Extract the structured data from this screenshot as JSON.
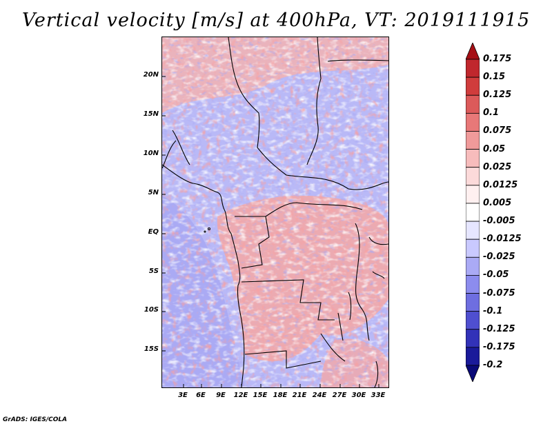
{
  "title": "Vertical velocity [m/s] at 400hPa, VT: 2019111915",
  "map": {
    "lat_labels": [
      "20N",
      "15N",
      "10N",
      "5N",
      "EQ",
      "5S",
      "10S",
      "15S"
    ],
    "lon_labels": [
      "3E",
      "6E",
      "9E",
      "12E",
      "15E",
      "18E",
      "21E",
      "24E",
      "27E",
      "30E",
      "33E"
    ]
  },
  "colorbar": {
    "labels": [
      "0.175",
      "0.15",
      "0.125",
      "0.1",
      "0.075",
      "0.05",
      "0.025",
      "0.0125",
      "0.005",
      "-0.005",
      "-0.0125",
      "-0.025",
      "-0.05",
      "-0.075",
      "-0.1",
      "-0.125",
      "-0.175",
      "-0.2"
    ],
    "colors": [
      "#a50f15",
      "#c0272d",
      "#d03c3c",
      "#dc5a5a",
      "#e87878",
      "#f09a9a",
      "#f7bcbc",
      "#fcdada",
      "#fff0f0",
      "#ffffff",
      "#e6e6ff",
      "#c9c9ff",
      "#aaaaf5",
      "#8c8cee",
      "#6e6ee0",
      "#4f4fd0",
      "#3232b8",
      "#1a1a9a",
      "#0a0a78"
    ]
  },
  "footer": "GrADS: IGES/COLA"
}
